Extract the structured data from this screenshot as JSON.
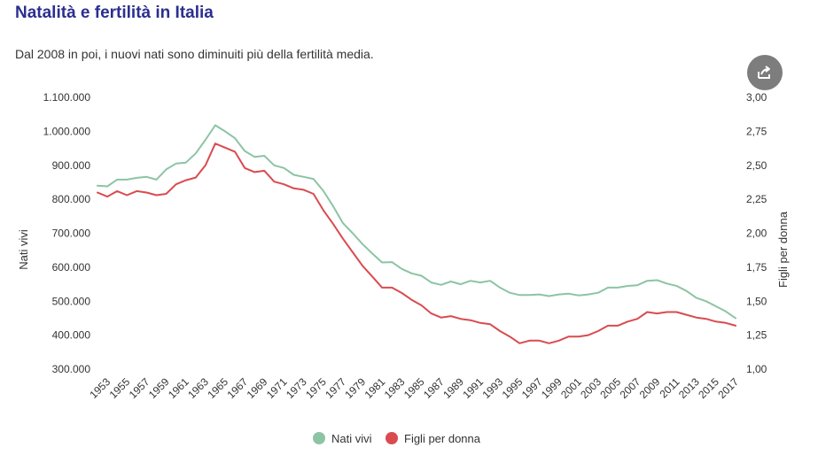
{
  "header": {
    "title": "Natalità e fertilità in Italia",
    "subtitle": "Dal 2008 in poi, i nuovi nati sono diminuiti più della fertilità media."
  },
  "toolbar": {
    "share_icon": "share-icon"
  },
  "colors": {
    "title": "#2b2f8f",
    "nati": "#8cc4a4",
    "figli": "#d94b4f",
    "share_bg": "#7d7d7d"
  },
  "chart_data": {
    "type": "line",
    "ylabel": "Nati vivi",
    "y2label": "Figli per donna",
    "ylim": [
      300000,
      1100000
    ],
    "y2lim": [
      1.0,
      3.0
    ],
    "y_ticks": [
      "300.000",
      "400.000",
      "500.000",
      "600.000",
      "700.000",
      "800.000",
      "900.000",
      "1.000.000",
      "1.100.000"
    ],
    "y2_ticks": [
      "1,00",
      "1,25",
      "1,50",
      "1,75",
      "2,00",
      "2,25",
      "2,50",
      "2,75",
      "3,00"
    ],
    "x_ticks": [
      "1953",
      "1955",
      "1957",
      "1959",
      "1961",
      "1963",
      "1965",
      "1967",
      "1969",
      "1971",
      "1973",
      "1975",
      "1977",
      "1979",
      "1981",
      "1983",
      "1985",
      "1987",
      "1989",
      "1991",
      "1993",
      "1995",
      "1997",
      "1999",
      "2001",
      "2003",
      "2005",
      "2007",
      "2009",
      "2011",
      "2013",
      "2015",
      "2017"
    ],
    "x": [
      1952,
      1953,
      1954,
      1955,
      1956,
      1957,
      1958,
      1959,
      1960,
      1961,
      1962,
      1963,
      1964,
      1965,
      1966,
      1967,
      1968,
      1969,
      1970,
      1971,
      1972,
      1973,
      1974,
      1975,
      1976,
      1977,
      1978,
      1979,
      1980,
      1981,
      1982,
      1983,
      1984,
      1985,
      1986,
      1987,
      1988,
      1989,
      1990,
      1991,
      1992,
      1993,
      1994,
      1995,
      1996,
      1997,
      1998,
      1999,
      2000,
      2001,
      2002,
      2003,
      2004,
      2005,
      2006,
      2007,
      2008,
      2009,
      2010,
      2011,
      2012,
      2013,
      2014,
      2015,
      2016,
      2017
    ],
    "legend": "bottom",
    "series": [
      {
        "name": "Nati vivi",
        "axis": "left",
        "color": "#8cc4a4",
        "values": [
          840000,
          838000,
          858000,
          858000,
          863000,
          866000,
          858000,
          888000,
          905000,
          908000,
          935000,
          975000,
          1018000,
          1000000,
          980000,
          942000,
          925000,
          928000,
          900000,
          892000,
          872000,
          866000,
          860000,
          825000,
          780000,
          730000,
          700000,
          668000,
          640000,
          614000,
          615000,
          595000,
          582000,
          575000,
          555000,
          548000,
          558000,
          550000,
          560000,
          555000,
          560000,
          540000,
          525000,
          518000,
          518000,
          520000,
          515000,
          520000,
          522000,
          517000,
          520000,
          525000,
          540000,
          540000,
          545000,
          547000,
          560000,
          562000,
          552000,
          545000,
          530000,
          510000,
          500000,
          485000,
          470000,
          450000
        ]
      },
      {
        "name": "Figli per donna",
        "axis": "right",
        "color": "#d94b4f",
        "values": [
          2.3,
          2.27,
          2.31,
          2.28,
          2.31,
          2.3,
          2.28,
          2.29,
          2.36,
          2.39,
          2.41,
          2.5,
          2.66,
          2.63,
          2.6,
          2.48,
          2.45,
          2.46,
          2.38,
          2.36,
          2.33,
          2.32,
          2.29,
          2.17,
          2.07,
          1.96,
          1.86,
          1.76,
          1.68,
          1.6,
          1.6,
          1.56,
          1.51,
          1.47,
          1.41,
          1.38,
          1.39,
          1.37,
          1.36,
          1.34,
          1.33,
          1.28,
          1.24,
          1.19,
          1.21,
          1.21,
          1.19,
          1.21,
          1.24,
          1.24,
          1.25,
          1.28,
          1.32,
          1.32,
          1.35,
          1.37,
          1.42,
          1.41,
          1.42,
          1.42,
          1.4,
          1.38,
          1.37,
          1.35,
          1.34,
          1.32
        ]
      }
    ]
  }
}
